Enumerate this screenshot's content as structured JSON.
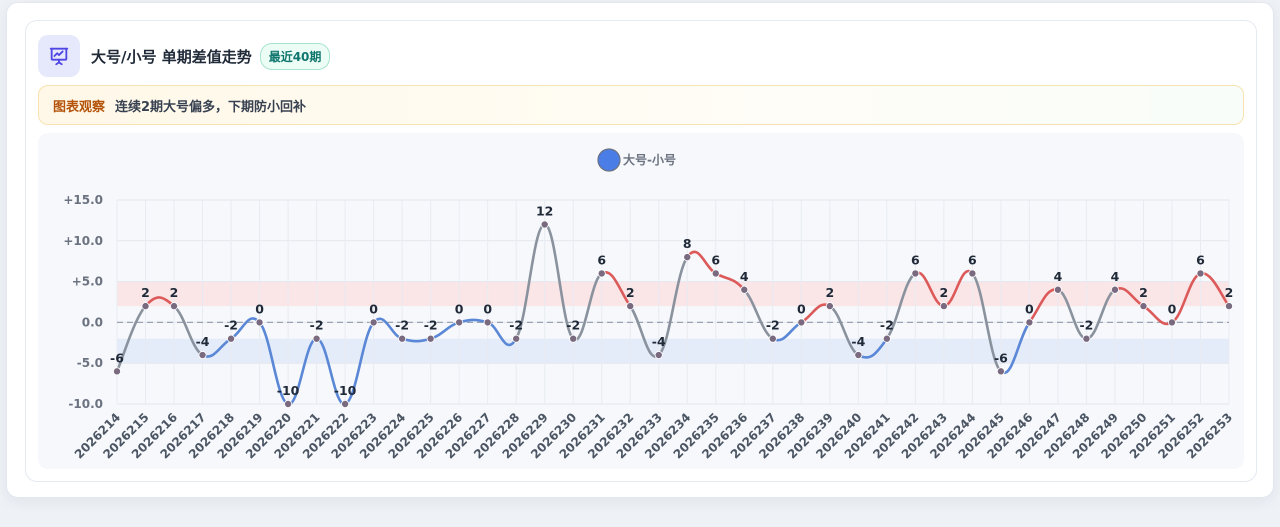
{
  "header": {
    "icon": "chart-presentation-icon",
    "title": "大号/小号 单期差值走势",
    "badge": "最近40期"
  },
  "insight": {
    "label": "图表观察",
    "text": "连续2期大号偏多，下期防小回补"
  },
  "colors": {
    "positive": "#dc5a5a",
    "negative": "#5a87d6",
    "neutral": "#8a929e",
    "legend_dot": "#4a7ee6",
    "band_positive": "#fbe2e4",
    "band_negative": "#e2e9f8"
  },
  "chart_data": {
    "type": "line",
    "legend": [
      "大号-小号"
    ],
    "legend_position": "top-center",
    "ylim": [
      -10,
      15
    ],
    "yticks": [
      "+15.0",
      "+10.0",
      "+5.0",
      "0.0",
      "-5.0",
      "-10.0"
    ],
    "ytick_values": [
      15,
      10,
      5,
      0,
      -5,
      -10
    ],
    "grid": true,
    "bands": [
      {
        "from": 2,
        "to": 5,
        "tone": "positive"
      },
      {
        "from": -5,
        "to": -2,
        "tone": "negative"
      }
    ],
    "reference_line": 0,
    "categories": [
      "2026214",
      "2026215",
      "2026216",
      "2026217",
      "2026218",
      "2026219",
      "2026220",
      "2026221",
      "2026222",
      "2026223",
      "2026224",
      "2026225",
      "2026226",
      "2026227",
      "2026228",
      "2026229",
      "2026230",
      "2026231",
      "2026232",
      "2026233",
      "2026234",
      "2026235",
      "2026236",
      "2026237",
      "2026238",
      "2026239",
      "2026240",
      "2026241",
      "2026242",
      "2026243",
      "2026244",
      "2026245",
      "2026246",
      "2026247",
      "2026248",
      "2026249",
      "2026250",
      "2026251",
      "2026252",
      "2026253"
    ],
    "series": [
      {
        "name": "大号-小号",
        "values": [
          -6,
          2,
          2,
          -4,
          -2,
          0,
          -10,
          -2,
          -10,
          0,
          -2,
          -2,
          0,
          0,
          -2,
          12,
          -2,
          6,
          2,
          -4,
          8,
          6,
          4,
          -2,
          0,
          2,
          -4,
          -2,
          6,
          2,
          6,
          -6,
          0,
          4,
          -2,
          4,
          2,
          0,
          6,
          2
        ],
        "labels": [
          "-6",
          "2",
          "2",
          "-4",
          "-2",
          "0",
          "-10",
          "-2",
          "-10",
          "0",
          "-2",
          "-2",
          "0",
          "0",
          "-2",
          "12",
          "-2",
          "6",
          "2",
          "-4",
          "8",
          "6",
          "4",
          "-2",
          "0",
          "2",
          "-4",
          "-2",
          "6",
          "2",
          "6",
          "-6",
          "0",
          "4",
          "-2",
          "4",
          "2",
          "0",
          "6",
          "2"
        ]
      }
    ]
  }
}
